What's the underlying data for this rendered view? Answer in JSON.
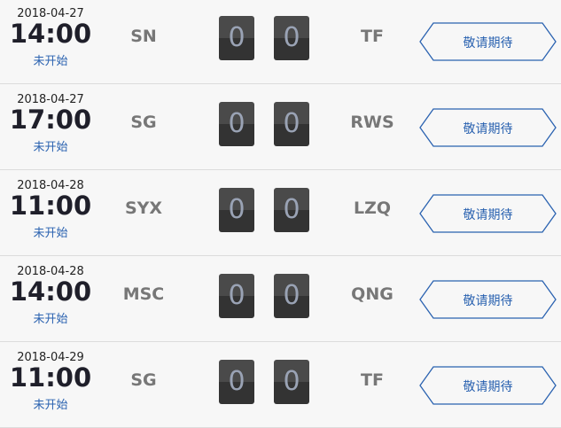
{
  "colors": {
    "accent": "#2a62b0",
    "team": "#777777",
    "score_bg": "#3d3d3d"
  },
  "matches": [
    {
      "date": "2018-04-27",
      "time": "14:00",
      "status": "未开始",
      "home": "SN",
      "home_score": "0",
      "away_score": "0",
      "away": "TF",
      "action": "敬请期待"
    },
    {
      "date": "2018-04-27",
      "time": "17:00",
      "status": "未开始",
      "home": "SG",
      "home_score": "0",
      "away_score": "0",
      "away": "RWS",
      "action": "敬请期待"
    },
    {
      "date": "2018-04-28",
      "time": "11:00",
      "status": "未开始",
      "home": "SYX",
      "home_score": "0",
      "away_score": "0",
      "away": "LZQ",
      "action": "敬请期待"
    },
    {
      "date": "2018-04-28",
      "time": "14:00",
      "status": "未开始",
      "home": "MSC",
      "home_score": "0",
      "away_score": "0",
      "away": "QNG",
      "action": "敬请期待"
    },
    {
      "date": "2018-04-29",
      "time": "11:00",
      "status": "未开始",
      "home": "SG",
      "home_score": "0",
      "away_score": "0",
      "away": "TF",
      "action": "敬请期待"
    }
  ]
}
